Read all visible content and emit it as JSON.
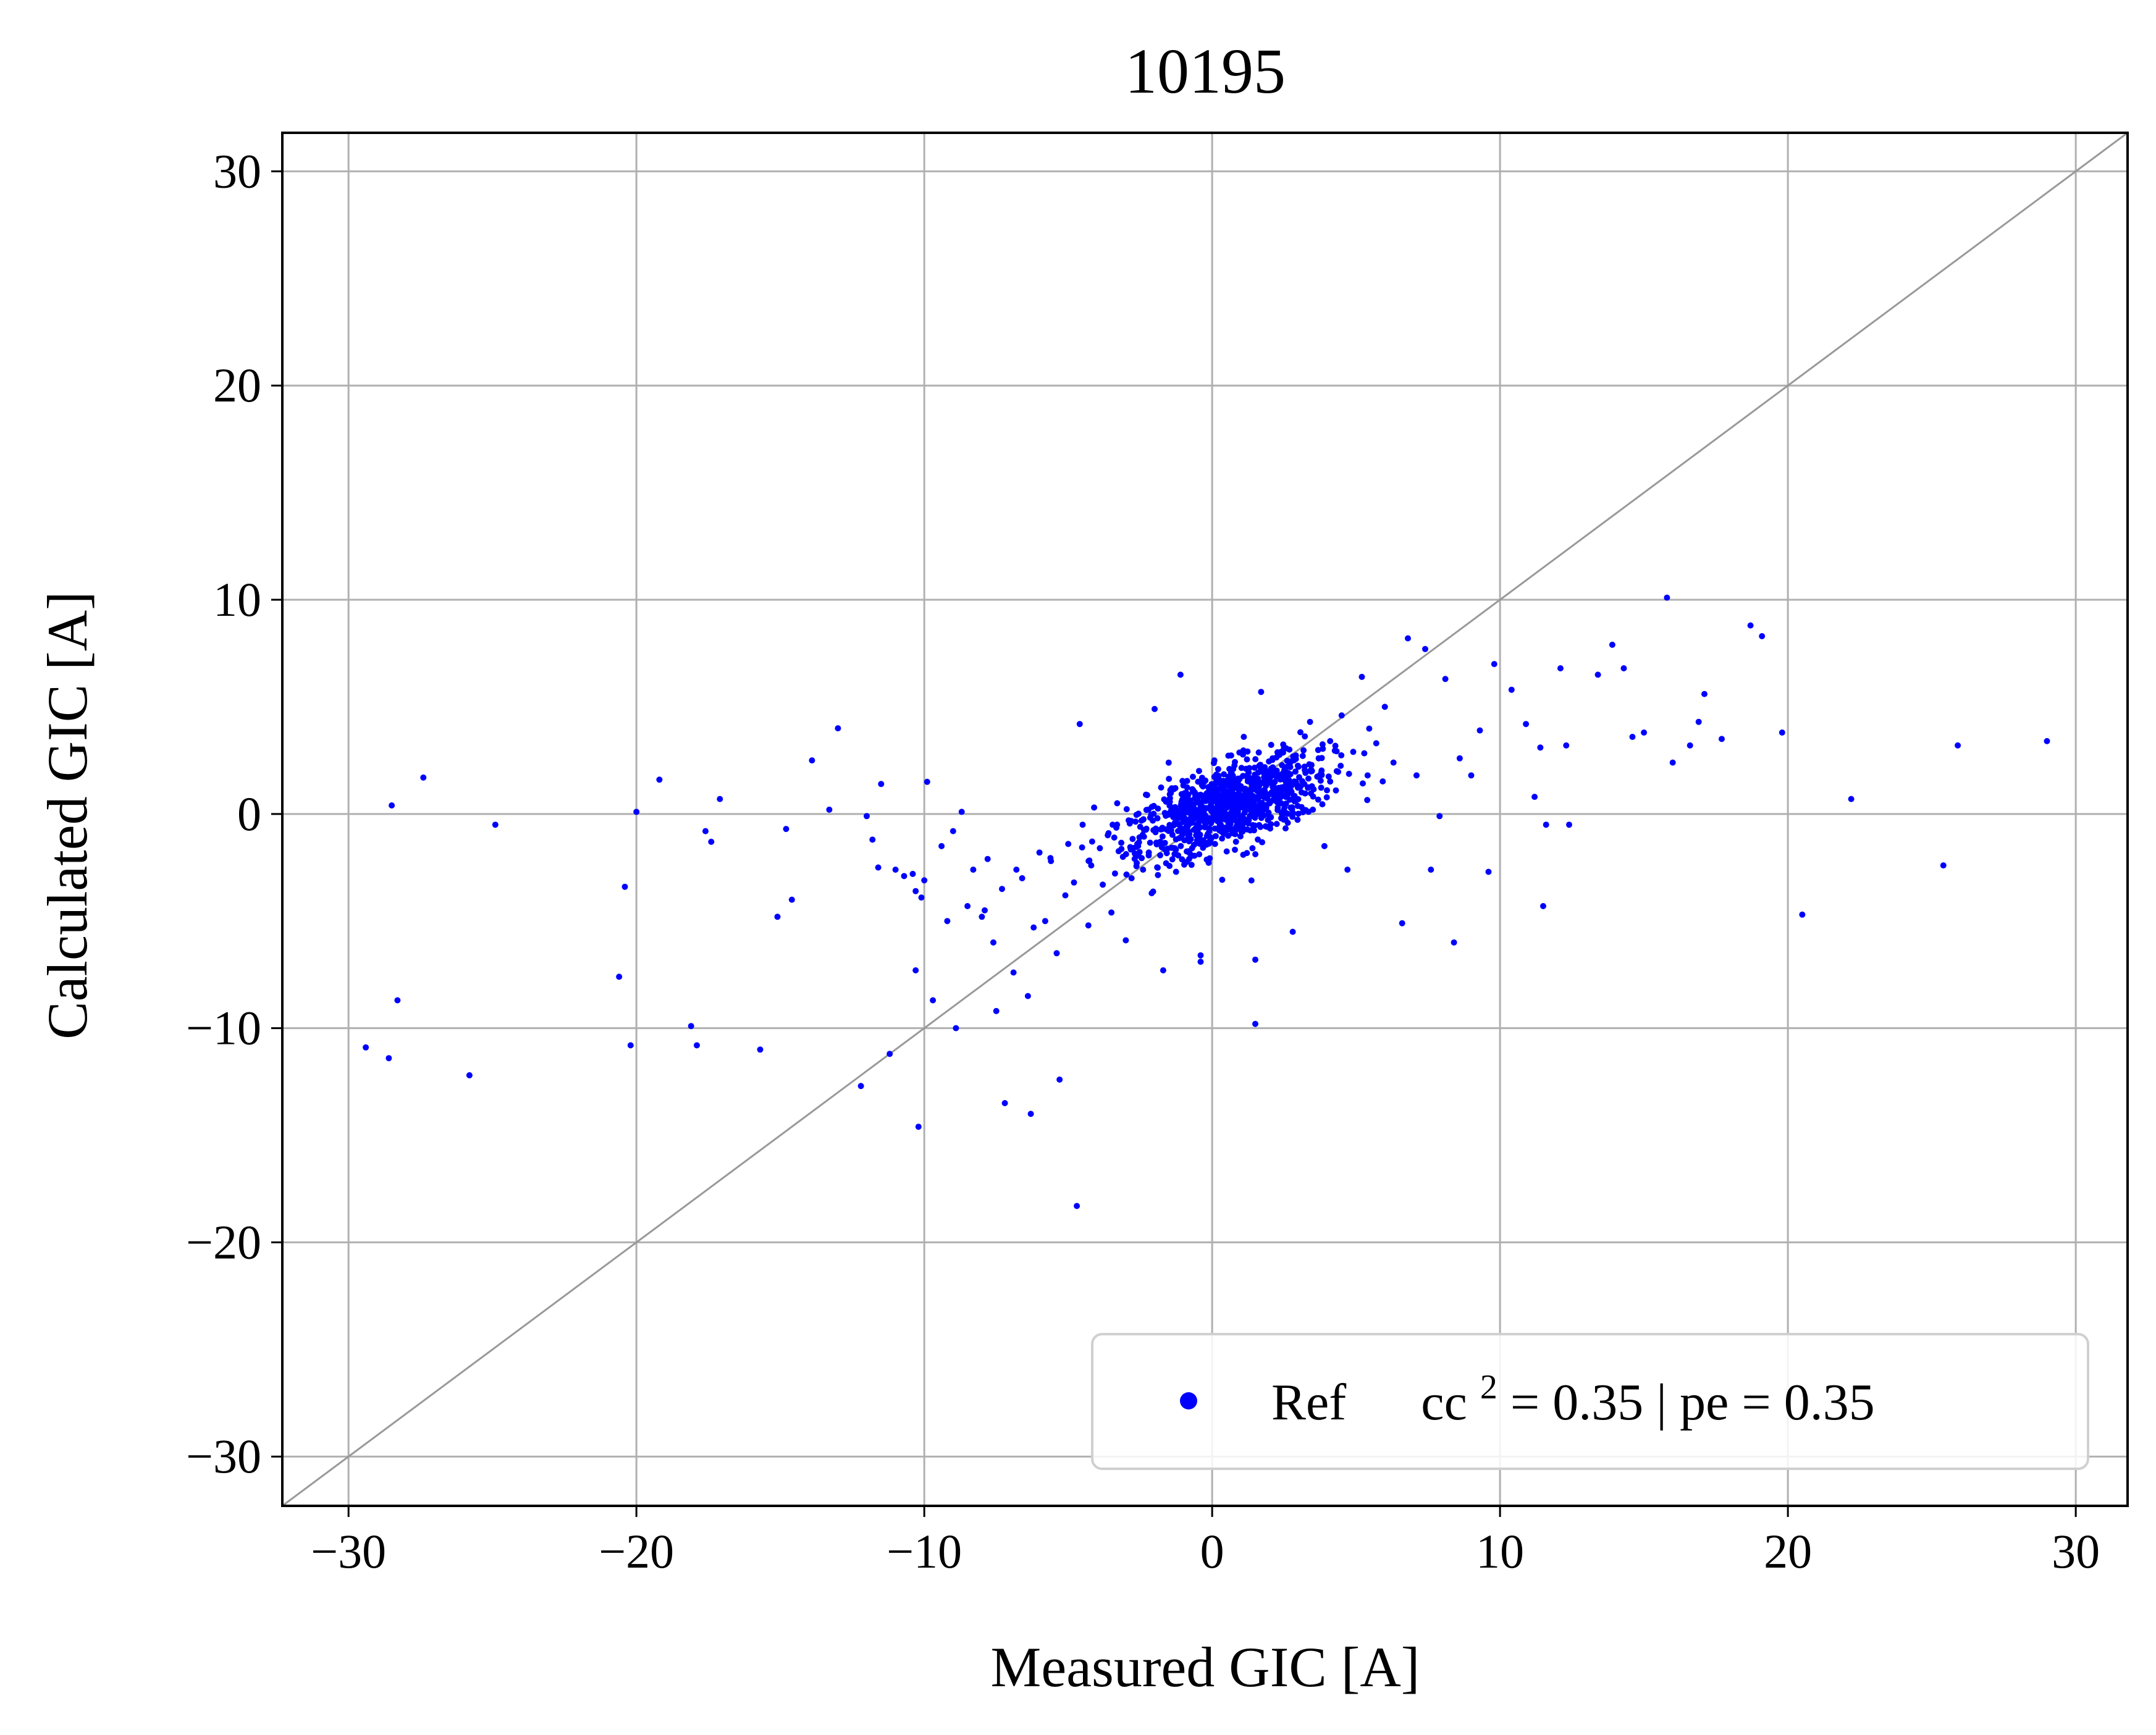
{
  "chart_data": {
    "type": "scatter",
    "title": "10195",
    "xlabel": "Measured GIC [A]",
    "ylabel": "Calculated GIC [A]",
    "xlim": [
      -32.3,
      31.8
    ],
    "ylim": [
      -32.3,
      31.8
    ],
    "xticks": [
      -30,
      -20,
      -10,
      0,
      10,
      20,
      30
    ],
    "yticks": [
      -30,
      -20,
      -10,
      0,
      10,
      20,
      30
    ],
    "xtick_labels": [
      "−30",
      "−20",
      "−10",
      "0",
      "10",
      "20",
      "30"
    ],
    "ytick_labels": [
      "−30",
      "−20",
      "−10",
      "0",
      "10",
      "20",
      "30"
    ],
    "grid": true,
    "reference_line": "y = x",
    "legend_position": "lower-right",
    "series": [
      {
        "name": "Ref",
        "label_extra_prefix": "cc",
        "label_extra_sup": "2",
        "label_extra_suffix": " = 0.35 | pe = 0.35",
        "color": "#0000ff",
        "points": [
          [
            -29.4,
            -10.9
          ],
          [
            -28.6,
            -11.4
          ],
          [
            -28.5,
            0.4
          ],
          [
            -28.3,
            -8.7
          ],
          [
            -27.4,
            1.7
          ],
          [
            -25.8,
            -12.2
          ],
          [
            -24.9,
            -0.5
          ],
          [
            -20.6,
            -7.6
          ],
          [
            -20.4,
            -3.4
          ],
          [
            -20.2,
            -10.8
          ],
          [
            -20.0,
            0.1
          ],
          [
            -18.1,
            -9.9
          ],
          [
            -17.9,
            -10.8
          ],
          [
            -19.2,
            1.6
          ],
          [
            -17.6,
            -0.8
          ],
          [
            -17.4,
            -1.3
          ],
          [
            -17.1,
            0.7
          ],
          [
            -15.7,
            -11.0
          ],
          [
            -15.1,
            -4.8
          ],
          [
            -14.8,
            -0.7
          ],
          [
            -14.6,
            -4.0
          ],
          [
            -13.9,
            2.5
          ],
          [
            -13.3,
            0.2
          ],
          [
            -13.0,
            4.0
          ],
          [
            -12.2,
            -12.7
          ],
          [
            -12.0,
            -0.1
          ],
          [
            -11.8,
            -1.2
          ],
          [
            -11.6,
            -2.5
          ],
          [
            -11.5,
            1.4
          ],
          [
            -11.2,
            -11.2
          ],
          [
            -11.0,
            -2.6
          ],
          [
            -10.7,
            -2.9
          ],
          [
            -10.4,
            -2.8
          ],
          [
            -10.3,
            -3.6
          ],
          [
            -10.1,
            -3.9
          ],
          [
            -10.2,
            -14.6
          ],
          [
            -10.3,
            -7.3
          ],
          [
            -10.0,
            -3.1
          ],
          [
            -9.9,
            1.5
          ],
          [
            -9.7,
            -8.7
          ],
          [
            -9.4,
            -1.5
          ],
          [
            -9.0,
            -0.8
          ],
          [
            -9.2,
            -5.0
          ],
          [
            -8.9,
            -10.0
          ],
          [
            -8.7,
            0.1
          ],
          [
            -8.5,
            -4.3
          ],
          [
            -8.3,
            -2.6
          ],
          [
            -8.0,
            -4.8
          ],
          [
            -7.9,
            -4.5
          ],
          [
            -7.8,
            -2.1
          ],
          [
            -7.6,
            -6.0
          ],
          [
            -7.5,
            -9.2
          ],
          [
            -7.3,
            -3.5
          ],
          [
            -7.2,
            -13.5
          ],
          [
            -6.9,
            -7.4
          ],
          [
            -6.8,
            -2.6
          ],
          [
            -6.6,
            -3.0
          ],
          [
            -6.4,
            -8.5
          ],
          [
            -6.3,
            -14.0
          ],
          [
            -6.2,
            -5.3
          ],
          [
            -6.0,
            -1.8
          ],
          [
            -5.8,
            -5.0
          ],
          [
            -5.6,
            -2.2
          ],
          [
            -5.4,
            -6.5
          ],
          [
            -5.3,
            -12.4
          ],
          [
            -5.1,
            -3.8
          ],
          [
            -5.0,
            -1.4
          ],
          [
            -4.8,
            -3.2
          ],
          [
            -4.7,
            -18.3
          ],
          [
            -4.6,
            4.2
          ],
          [
            -4.5,
            -0.5
          ],
          [
            -4.3,
            -5.2
          ],
          [
            -4.2,
            -2.4
          ],
          [
            -4.1,
            0.3
          ],
          [
            -3.9,
            -1.6
          ],
          [
            -3.8,
            -3.3
          ],
          [
            -3.6,
            -0.9
          ],
          [
            -3.5,
            -4.6
          ],
          [
            -3.4,
            -1.1
          ],
          [
            -3.3,
            0.5
          ],
          [
            -3.1,
            -2.0
          ],
          [
            -3.0,
            -5.9
          ],
          [
            -2.9,
            -0.3
          ],
          [
            -2.8,
            -3.0
          ],
          [
            -2.6,
            -1.4
          ],
          [
            -2.5,
            -0.6
          ],
          [
            -2.4,
            -2.6
          ],
          [
            -2.3,
            0.9
          ],
          [
            -2.2,
            -1.8
          ],
          [
            -2.1,
            -3.7
          ],
          [
            -2.0,
            4.9
          ],
          [
            -1.9,
            -0.2
          ],
          [
            -1.8,
            -1.3
          ],
          [
            -1.7,
            -7.3
          ],
          [
            -1.6,
            -2.3
          ],
          [
            -1.5,
            -0.7
          ],
          [
            -1.4,
            1.2
          ],
          [
            -1.3,
            -1.6
          ],
          [
            -1.2,
            -0.1
          ],
          [
            -1.1,
            6.5
          ],
          [
            -1.0,
            -0.9
          ],
          [
            -0.9,
            0.6
          ],
          [
            -0.8,
            -2.1
          ],
          [
            -0.7,
            -0.4
          ],
          [
            -0.6,
            1.0
          ],
          [
            -0.5,
            -1.2
          ],
          [
            -0.4,
            -6.6
          ],
          [
            -0.4,
            -6.9
          ],
          [
            -0.3,
            -0.2
          ],
          [
            -0.2,
            0.8
          ],
          [
            -0.1,
            -0.8
          ],
          [
            0.0,
            0.3
          ],
          [
            0.1,
            -1.4
          ],
          [
            0.2,
            1.5
          ],
          [
            0.3,
            -0.5
          ],
          [
            0.4,
            0.9
          ],
          [
            0.5,
            -0.2
          ],
          [
            0.6,
            2.1
          ],
          [
            0.7,
            -0.9
          ],
          [
            0.8,
            0.6
          ],
          [
            0.9,
            1.6
          ],
          [
            1.0,
            -0.4
          ],
          [
            1.1,
            3.6
          ],
          [
            1.2,
            0.2
          ],
          [
            1.3,
            1.1
          ],
          [
            1.4,
            -1.6
          ],
          [
            1.5,
            -6.8
          ],
          [
            1.5,
            -9.8
          ],
          [
            1.6,
            0.8
          ],
          [
            1.7,
            5.7
          ],
          [
            1.8,
            1.9
          ],
          [
            1.9,
            -0.6
          ],
          [
            2.0,
            0.5
          ],
          [
            2.1,
            2.6
          ],
          [
            2.2,
            1.2
          ],
          [
            2.4,
            -0.2
          ],
          [
            2.5,
            3.1
          ],
          [
            2.6,
            1.7
          ],
          [
            2.8,
            -5.5
          ],
          [
            2.9,
            0.6
          ],
          [
            3.0,
            2.2
          ],
          [
            3.2,
            1.4
          ],
          [
            3.4,
            4.3
          ],
          [
            3.5,
            0.2
          ],
          [
            3.7,
            2.6
          ],
          [
            3.9,
            -1.5
          ],
          [
            4.1,
            3.4
          ],
          [
            4.3,
            1.1
          ],
          [
            4.5,
            4.6
          ],
          [
            4.7,
            -2.6
          ],
          [
            4.9,
            2.9
          ],
          [
            5.2,
            6.4
          ],
          [
            5.4,
            1.8
          ],
          [
            5.7,
            3.3
          ],
          [
            6.0,
            5.0
          ],
          [
            6.3,
            2.4
          ],
          [
            6.6,
            -5.1
          ],
          [
            6.8,
            8.2
          ],
          [
            7.1,
            1.8
          ],
          [
            7.4,
            7.7
          ],
          [
            7.6,
            -2.6
          ],
          [
            7.9,
            -0.1
          ],
          [
            8.1,
            6.3
          ],
          [
            8.4,
            -6.0
          ],
          [
            8.6,
            2.6
          ],
          [
            9.0,
            1.8
          ],
          [
            9.3,
            3.9
          ],
          [
            9.6,
            -2.7
          ],
          [
            9.8,
            7.0
          ],
          [
            10.4,
            5.8
          ],
          [
            10.9,
            4.2
          ],
          [
            11.2,
            0.8
          ],
          [
            11.4,
            3.1
          ],
          [
            11.5,
            -4.3
          ],
          [
            11.6,
            -0.5
          ],
          [
            12.1,
            6.8
          ],
          [
            12.3,
            3.2
          ],
          [
            12.4,
            -0.5
          ],
          [
            13.4,
            6.5
          ],
          [
            13.9,
            7.9
          ],
          [
            14.3,
            6.8
          ],
          [
            14.6,
            3.6
          ],
          [
            15.0,
            3.8
          ],
          [
            15.8,
            10.1
          ],
          [
            16.0,
            2.4
          ],
          [
            16.6,
            3.2
          ],
          [
            16.9,
            4.3
          ],
          [
            17.1,
            5.6
          ],
          [
            17.7,
            3.5
          ],
          [
            18.7,
            8.8
          ],
          [
            19.1,
            8.3
          ],
          [
            19.8,
            3.8
          ],
          [
            20.5,
            -4.7
          ],
          [
            22.2,
            0.7
          ],
          [
            25.4,
            -2.4
          ],
          [
            25.9,
            3.2
          ],
          [
            29.0,
            3.4
          ]
        ],
        "cluster": {
          "count": 900,
          "center": [
            0.6,
            0.4
          ],
          "sigma_major": 1.9,
          "sigma_minor": 0.85,
          "angle_deg": 30
        }
      }
    ]
  }
}
